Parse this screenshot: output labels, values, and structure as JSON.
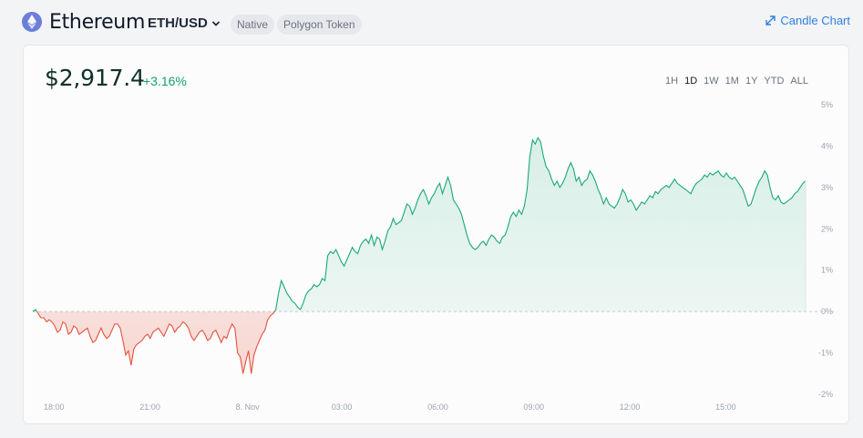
{
  "header": {
    "title": "Ethereum",
    "pair": "ETH/USD",
    "badges": [
      "Native",
      "Polygon Token"
    ],
    "candle_link": "Candle Chart"
  },
  "summary": {
    "price": "$2,917.4",
    "change": "+3.16%"
  },
  "ranges": {
    "items": [
      "1H",
      "1D",
      "1W",
      "1M",
      "1Y",
      "YTD",
      "ALL"
    ],
    "active": "1D"
  },
  "colors": {
    "up": "#19a974",
    "down": "#e5533d",
    "accent": "#2f7fe0"
  },
  "chart_data": {
    "type": "area",
    "y_unit": "% change",
    "ylim": [
      -2,
      5
    ],
    "y_ticks": [
      "5%",
      "4%",
      "3%",
      "2%",
      "1%",
      "0%",
      "-1%",
      "-2%"
    ],
    "x_ticks": [
      "18:00",
      "21:00",
      "8. Nov",
      "03:00",
      "06:00",
      "09:00",
      "12:00",
      "15:00"
    ],
    "baseline": 0,
    "series": [
      {
        "values": [
          0.0,
          0.05,
          -0.05,
          -0.15,
          -0.15,
          -0.25,
          -0.2,
          -0.25,
          -0.35,
          -0.5,
          -0.45,
          -0.25,
          -0.3,
          -0.55,
          -0.5,
          -0.35,
          -0.4,
          -0.55,
          -0.5,
          -0.45,
          -0.4,
          -0.6,
          -0.75,
          -0.7,
          -0.55,
          -0.4,
          -0.55,
          -0.65,
          -0.6,
          -0.45,
          -0.3,
          -0.3,
          -0.4,
          -0.7,
          -1.05,
          -0.95,
          -1.3,
          -0.9,
          -0.8,
          -0.75,
          -0.7,
          -0.6,
          -0.55,
          -0.65,
          -0.5,
          -0.45,
          -0.4,
          -0.5,
          -0.6,
          -0.45,
          -0.3,
          -0.35,
          -0.5,
          -0.4,
          -0.35,
          -0.25,
          -0.3,
          -0.4,
          -0.6,
          -0.7,
          -0.6,
          -0.5,
          -0.45,
          -0.55,
          -0.7,
          -0.65,
          -0.5,
          -0.45,
          -0.6,
          -0.75,
          -0.6,
          -0.65,
          -0.45,
          -0.3,
          -0.4,
          -1.0,
          -1.1,
          -1.5,
          -1.2,
          -0.95,
          -1.5,
          -1.05,
          -0.85,
          -0.7,
          -0.55,
          -0.45,
          -0.2,
          -0.1,
          -0.05,
          0.05,
          0.45,
          0.75,
          0.6,
          0.45,
          0.35,
          0.25,
          0.2,
          0.1,
          0.05,
          0.2,
          0.4,
          0.5,
          0.55,
          0.65,
          0.6,
          0.65,
          0.8,
          0.75,
          1.35,
          1.45,
          1.4,
          1.5,
          1.35,
          1.2,
          1.1,
          1.25,
          1.4,
          1.55,
          1.45,
          1.4,
          1.6,
          1.7,
          1.75,
          1.65,
          1.85,
          1.6,
          1.8,
          1.75,
          1.5,
          1.7,
          1.95,
          2.05,
          2.25,
          2.1,
          2.15,
          2.2,
          2.4,
          2.6,
          2.55,
          2.35,
          2.5,
          2.7,
          2.85,
          2.95,
          2.8,
          2.6,
          2.75,
          2.85,
          3.0,
          3.1,
          2.85,
          3.05,
          3.25,
          3.05,
          2.7,
          2.6,
          2.5,
          2.35,
          2.1,
          1.85,
          1.65,
          1.55,
          1.5,
          1.55,
          1.65,
          1.7,
          1.6,
          1.75,
          1.85,
          1.8,
          1.7,
          1.65,
          1.8,
          1.85,
          2.05,
          2.3,
          2.4,
          2.3,
          2.45,
          2.35,
          2.55,
          2.95,
          3.75,
          4.15,
          4.05,
          4.2,
          4.1,
          3.75,
          3.5,
          3.4,
          3.2,
          3.05,
          3.15,
          3.0,
          3.1,
          3.25,
          3.45,
          3.6,
          3.45,
          3.15,
          3.25,
          3.05,
          3.15,
          3.2,
          3.4,
          3.3,
          3.15,
          2.95,
          2.8,
          2.6,
          2.75,
          2.6,
          2.55,
          2.5,
          2.6,
          2.75,
          2.95,
          2.85,
          2.65,
          2.7,
          2.6,
          2.45,
          2.55,
          2.65,
          2.6,
          2.7,
          2.8,
          2.75,
          2.9,
          2.85,
          2.95,
          3.0,
          3.05,
          3.0,
          3.1,
          3.2,
          3.1,
          3.05,
          3.0,
          2.95,
          2.9,
          2.85,
          3.0,
          3.1,
          3.15,
          3.2,
          3.3,
          3.25,
          3.35,
          3.3,
          3.35,
          3.4,
          3.3,
          3.25,
          3.35,
          3.25,
          3.2,
          3.25,
          3.15,
          3.05,
          2.95,
          2.75,
          2.55,
          2.6,
          2.8,
          3.0,
          3.15,
          3.25,
          3.4,
          3.3,
          3.0,
          2.75,
          2.7,
          2.8,
          2.65,
          2.6,
          2.65,
          2.7,
          2.75,
          2.85,
          2.9,
          3.0,
          3.1,
          3.16
        ]
      }
    ]
  }
}
